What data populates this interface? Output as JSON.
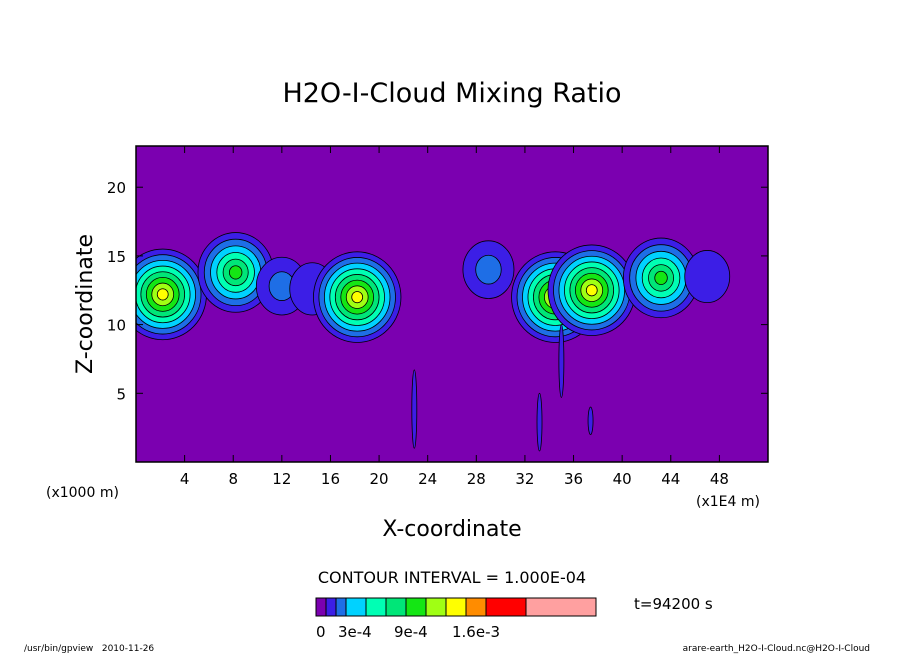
{
  "chart_data": {
    "type": "heatmap",
    "title": "H2O-I-Cloud Mixing Ratio",
    "xlabel": "X-coordinate",
    "ylabel": "Z-coordinate",
    "x_unit_left": "(x1000 m)",
    "x_unit_right": "(x1E4 m)",
    "xlim": [
      0,
      52
    ],
    "ylim": [
      0,
      23
    ],
    "x_ticks": [
      "4",
      "8",
      "12",
      "16",
      "20",
      "24",
      "28",
      "32",
      "36",
      "40",
      "44",
      "48"
    ],
    "y_ticks": [
      "5",
      "10",
      "15",
      "20"
    ],
    "contour_interval": "CONTOUR INTERVAL = 1.000E-04",
    "time_label": "t=94200 s",
    "colorbar": {
      "colors": [
        "#7b00b0",
        "#3c1ee6",
        "#1e6ee6",
        "#00d2ff",
        "#00ffb4",
        "#00e678",
        "#14e614",
        "#a0ff14",
        "#ffff00",
        "#ff8c00",
        "#ff0000",
        "#ffa0a0"
      ],
      "labels": [
        "0",
        "3e-4",
        "9e-4",
        "1.6e-3"
      ]
    },
    "cloud_blobs": [
      {
        "x": 2.2,
        "z": 12.2,
        "peak": "1.1e-3"
      },
      {
        "x": 8.2,
        "z": 13.8,
        "peak": "6e-4"
      },
      {
        "x": 12.0,
        "z": 12.8,
        "peak": "2e-4"
      },
      {
        "x": 14.5,
        "z": 12.6,
        "peak": "1e-4"
      },
      {
        "x": 18.2,
        "z": 12.0,
        "peak": "1.3e-3"
      },
      {
        "x": 29.0,
        "z": 14.0,
        "peak": "2e-4"
      },
      {
        "x": 34.5,
        "z": 12.0,
        "peak": "1.6e-3"
      },
      {
        "x": 37.5,
        "z": 12.5,
        "peak": "9e-4"
      },
      {
        "x": 43.2,
        "z": 13.4,
        "peak": "6e-4"
      },
      {
        "x": 47.0,
        "z": 13.5,
        "peak": "1e-4"
      }
    ]
  },
  "footer": {
    "left": "/usr/bin/gpview   2010-11-26",
    "right": "arare-earth_H2O-I-Cloud.nc@H2O-I-Cloud"
  }
}
